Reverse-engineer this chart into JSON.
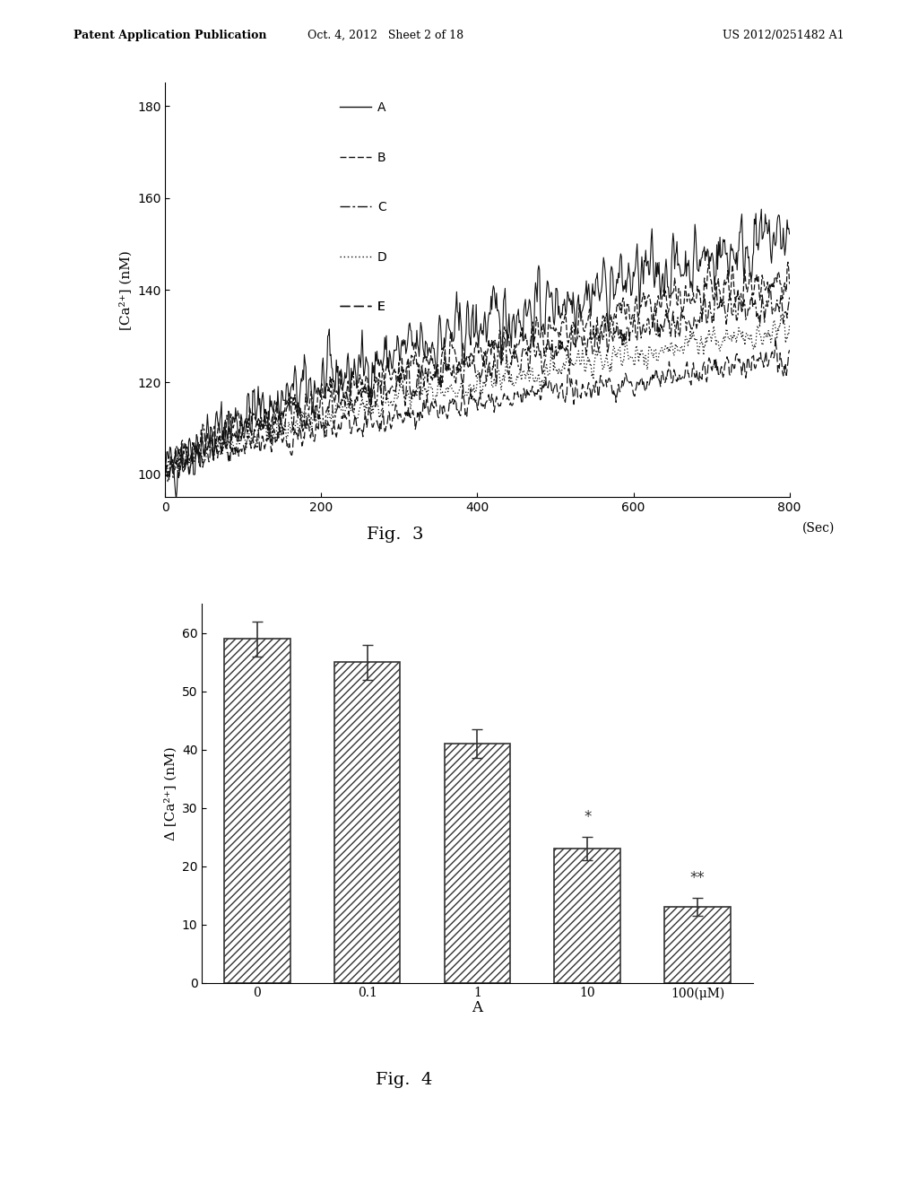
{
  "header_left": "Patent Application Publication",
  "header_center": "Oct. 4, 2012   Sheet 2 of 18",
  "header_right": "US 2012/0251482 A1",
  "fig3": {
    "title": "Fig.  3",
    "xlabel": "(Sec)",
    "ylabel": "[Ca²⁺] (nM)",
    "xlim": [
      0,
      800
    ],
    "ylim": [
      95,
      185
    ],
    "yticks": [
      100,
      120,
      140,
      160,
      180
    ],
    "xticks": [
      0,
      200,
      400,
      600,
      800
    ],
    "series": {
      "A": {
        "start": 100,
        "end": 152,
        "noise": 6,
        "linestyle": "solid",
        "color": "#333333"
      },
      "B": {
        "start": 100,
        "end": 143,
        "noise": 4,
        "linestyle": "dashed",
        "color": "#333333"
      },
      "C": {
        "start": 100,
        "end": 138,
        "noise": 4,
        "linestyle": "dashdot",
        "color": "#333333"
      },
      "D": {
        "start": 100,
        "end": 132,
        "noise": 3,
        "linestyle": "dotted",
        "color": "#333333"
      },
      "E": {
        "start": 100,
        "end": 125,
        "noise": 3,
        "linestyle": "loosely_dashed",
        "color": "#333333"
      }
    }
  },
  "fig4": {
    "title": "Fig.  4",
    "xlabel": "A",
    "ylabel": "Δ [Ca²⁺] (nM)",
    "xlim": [
      -0.5,
      4.5
    ],
    "ylim": [
      0,
      65
    ],
    "yticks": [
      0,
      10,
      20,
      30,
      40,
      50,
      60
    ],
    "categories": [
      "0",
      "0.1",
      "1",
      "10",
      "100(μM)"
    ],
    "values": [
      59,
      55,
      41,
      23,
      13
    ],
    "errors": [
      3,
      3,
      2.5,
      2,
      1.5
    ],
    "hatch": "////",
    "bar_color": "white",
    "bar_edge": "#333333",
    "significance": [
      "",
      "",
      "",
      "*",
      "**"
    ]
  }
}
